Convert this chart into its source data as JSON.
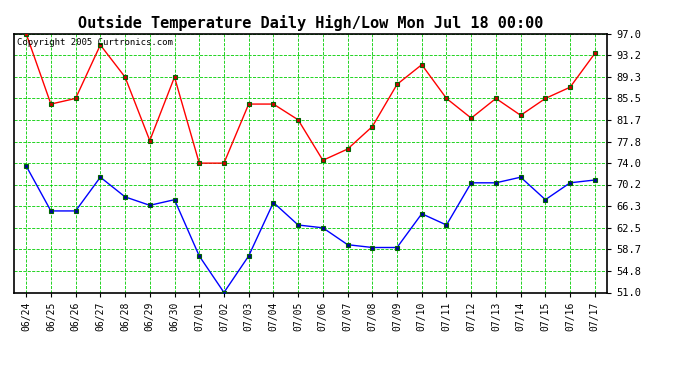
{
  "title": "Outside Temperature Daily High/Low Mon Jul 18 00:00",
  "copyright": "Copyright 2005 Curtronics.com",
  "x_labels": [
    "06/24",
    "06/25",
    "06/26",
    "06/27",
    "06/28",
    "06/29",
    "06/30",
    "07/01",
    "07/02",
    "07/03",
    "07/04",
    "07/05",
    "07/06",
    "07/07",
    "07/08",
    "07/09",
    "07/10",
    "07/11",
    "07/12",
    "07/13",
    "07/14",
    "07/15",
    "07/16",
    "07/17"
  ],
  "high_temps": [
    97.0,
    84.5,
    85.5,
    95.0,
    89.3,
    78.0,
    89.3,
    74.0,
    74.0,
    84.5,
    84.5,
    81.7,
    74.5,
    76.5,
    80.5,
    88.0,
    91.5,
    85.5,
    82.0,
    85.5,
    82.5,
    85.5,
    87.5,
    93.5
  ],
  "low_temps": [
    73.5,
    65.5,
    65.5,
    71.5,
    68.0,
    66.5,
    67.5,
    57.5,
    51.0,
    57.5,
    67.0,
    63.0,
    62.5,
    59.5,
    59.0,
    59.0,
    65.0,
    63.0,
    70.5,
    70.5,
    71.5,
    67.5,
    70.5,
    71.0
  ],
  "high_color": "#ff0000",
  "low_color": "#0000ff",
  "marker_high_face": "#cc0000",
  "marker_high_edge": "#006600",
  "marker_low_face": "#000099",
  "marker_low_edge": "#006600",
  "bg_color": "#ffffff",
  "plot_bg": "#ffffff",
  "grid_color": "#00cc00",
  "title_color": "#000000",
  "border_color": "#000000",
  "ylim_min": 51.0,
  "ylim_max": 97.0,
  "yticks": [
    51.0,
    54.8,
    58.7,
    62.5,
    66.3,
    70.2,
    74.0,
    77.8,
    81.7,
    85.5,
    89.3,
    93.2,
    97.0
  ],
  "fig_width": 6.9,
  "fig_height": 3.75,
  "dpi": 100
}
